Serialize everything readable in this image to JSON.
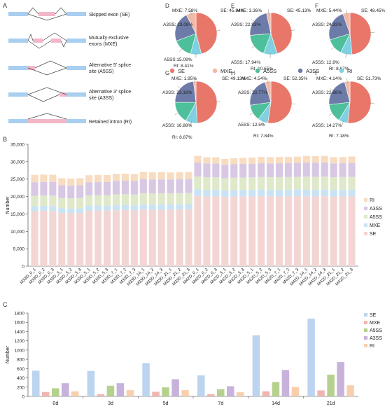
{
  "panels": {
    "A": "A",
    "B": "B",
    "C": "C",
    "D": "D",
    "E": "E",
    "F": "F",
    "G": "G",
    "H": "H",
    "I": "I"
  },
  "splice_types": [
    {
      "label": "Skipped exon (SE)",
      "lines": [
        "Skipped exon (SE)"
      ]
    },
    {
      "label": "Mutually exclusive exons (MXE)",
      "lines": [
        "Mutually exclusive",
        "exons (MXE)"
      ]
    },
    {
      "label": "Alternative 5' splice site (A5SS)",
      "lines": [
        "Alternative 5' splice",
        "site (A5SS)"
      ]
    },
    {
      "label": "Alternative 3' splice site (A3SS)",
      "lines": [
        "Alternative 3' splice",
        "site (A3SS)"
      ]
    },
    {
      "label": "Retained intron (RI)",
      "lines": [
        "Retained intron (RI)"
      ]
    }
  ],
  "colors": {
    "SE": "#e8776a",
    "MXE": "#f2b9a6",
    "A5SS": "#4dbf9b",
    "A3SS": "#6c7ba8",
    "RI": "#7fd0e0",
    "bar_SE": "#f3d6d4",
    "bar_MXE": "#c9e3f4",
    "bar_A5SS": "#dfe9c9",
    "bar_A3SS": "#d8c8e4",
    "bar_RI": "#f8dcc0",
    "c_SE": "#bcd4ef",
    "c_MXE": "#efb6b0",
    "c_A5SS": "#b6d18e",
    "c_A3SS": "#c7b2dc",
    "c_RI": "#f8cfae",
    "exon": "#a9cff0",
    "alt_exon": "#f2b8c8"
  },
  "pie_legend": [
    "SE",
    "MXE",
    "A5SS",
    "A3SS",
    "RI"
  ],
  "chart_data": [
    {
      "type": "pie",
      "panel": "D",
      "labels": [
        "SE",
        "MXE",
        "A5SS",
        "A3SS",
        "RI"
      ],
      "values": [
        45.84,
        7.58,
        15.09,
        23.08,
        8.41
      ],
      "label_texts": {
        "SE": "SE: 45.84%",
        "MXE": "MXE: 7.58%",
        "A5SS": "A5SS:15.09%",
        "A3SS": "A3SS: 23.08%",
        "RI": "RI: 8.41%"
      }
    },
    {
      "type": "pie",
      "panel": "E",
      "labels": [
        "SE",
        "MXE",
        "A5SS",
        "A3SS",
        "RI"
      ],
      "values": [
        45.13,
        3.36,
        17.94,
        22.93,
        10.65
      ],
      "label_texts": {
        "SE": "SE: 45.13%",
        "MXE": "MXE: 3.36%",
        "A5SS": "A5SS: 17.94%",
        "A3SS": "A3SS: 22.93%",
        "RI": "RI: 10.65%"
      }
    },
    {
      "type": "pie",
      "panel": "F",
      "labels": [
        "SE",
        "MXE",
        "A5SS",
        "A3SS",
        "RI"
      ],
      "values": [
        48.45,
        5.44,
        12.9,
        24.33,
        8.87
      ],
      "label_texts": {
        "SE": "SE: 48.45%",
        "MXE": "MXE: 5.44%",
        "A5SS": "A5SS: 12.9%",
        "A3SS": "A3SS: 24.33%",
        "RI": "RI: 8.87%"
      }
    },
    {
      "type": "pie",
      "panel": "G",
      "labels": [
        "SE",
        "MXE",
        "A5SS",
        "A3SS",
        "RI"
      ],
      "values": [
        49.13,
        1.95,
        16.88,
        23.16,
        8.87
      ],
      "label_texts": {
        "SE": "SE: 49.13%",
        "MXE": "MXE: 1.95%",
        "A5SS": "A5SS: 16.88%",
        "A3SS": "A3SS: 23.16%",
        "RI": "RI: 8.87%"
      }
    },
    {
      "type": "pie",
      "panel": "H",
      "labels": [
        "SE",
        "MXE",
        "A5SS",
        "A3SS",
        "RI"
      ],
      "values": [
        52.35,
        4.54,
        12.5,
        22.77,
        7.84
      ],
      "label_texts": {
        "SE": "SE: 52.35%",
        "MXE": "MXE: 4.54%",
        "A5SS": "A5SS: 12.5%",
        "A3SS": "A3SS: 22.77%",
        "RI": "RI: 7.84%"
      }
    },
    {
      "type": "pie",
      "panel": "I",
      "labels": [
        "SE",
        "MXE",
        "A5SS",
        "A3SS",
        "RI"
      ],
      "values": [
        51.73,
        4.14,
        14.27,
        22.68,
        7.18
      ],
      "label_texts": {
        "SE": "SE: 51.73%",
        "MXE": "MXE: 4.14%",
        "A5SS": "A5SS: 14.27%",
        "A3SS": "A3SS: 22.68%",
        "RI": "RI: 7.18%"
      }
    },
    {
      "type": "bar",
      "panel": "B",
      "stacked": true,
      "categories": [
        "M33D_0_1",
        "M33D_0_2",
        "M33D_0_3",
        "M33D_3_1",
        "M33D_3_2",
        "M33D_3_3",
        "M33D_5_1",
        "M33D_5_2",
        "M33D_5_3",
        "M33D_7_1",
        "M33D_7_2",
        "M33D_7_3",
        "M33D_14_1",
        "M33D_14_2",
        "M33D_14_3",
        "M33D_21_1",
        "M33D_21_2",
        "M33D_21_3",
        "M42D_0_1",
        "M42D_0_2",
        "M42D_0_3",
        "M42D_3_1",
        "M42D_3_2",
        "M42D_3_3",
        "M42D_5_1",
        "M42D_5_2",
        "M42D_5_3",
        "M42D_7_1",
        "M42D_7_2",
        "M42D_7_3",
        "M42D_14_1",
        "M42D_14_2",
        "M42D_14_3",
        "M42D_21_1",
        "M42D_21_2",
        "M42D_21_3"
      ],
      "series": [
        {
          "name": "SE",
          "values": [
            15800,
            15900,
            15850,
            15300,
            15200,
            15300,
            15900,
            16000,
            15950,
            16050,
            16100,
            16000,
            16250,
            16150,
            16200,
            16200,
            16250,
            16300,
            20150,
            20000,
            20050,
            19900,
            20000,
            20050,
            20000,
            20100,
            20050,
            20000,
            20050,
            20100,
            20050,
            20000,
            20050,
            19950,
            20000,
            20050
          ]
        },
        {
          "name": "MXE",
          "values": [
            1400,
            1400,
            1400,
            1350,
            1350,
            1350,
            1400,
            1400,
            1400,
            1450,
            1450,
            1450,
            1500,
            1500,
            1500,
            1500,
            1500,
            1500,
            1900,
            1900,
            1850,
            1850,
            1850,
            1850,
            1900,
            1900,
            1900,
            1900,
            1900,
            1900,
            1950,
            1950,
            1950,
            1950,
            1950,
            1950
          ]
        },
        {
          "name": "A5SS",
          "values": [
            3000,
            3000,
            3000,
            2900,
            2900,
            2900,
            3000,
            3000,
            3000,
            3100,
            3100,
            3100,
            3200,
            3200,
            3200,
            3200,
            3200,
            3200,
            3700,
            3600,
            3600,
            3500,
            3550,
            3550,
            3600,
            3600,
            3600,
            3650,
            3650,
            3650,
            3700,
            3700,
            3700,
            3650,
            3650,
            3650
          ]
        },
        {
          "name": "A3SS",
          "values": [
            3900,
            3900,
            3900,
            3700,
            3700,
            3700,
            3800,
            3800,
            3800,
            3900,
            3900,
            3900,
            4000,
            4000,
            4000,
            4000,
            4000,
            4000,
            4000,
            4000,
            3950,
            3850,
            3900,
            3950,
            3900,
            3950,
            3950,
            4000,
            4000,
            4000,
            4050,
            4050,
            4050,
            3950,
            3950,
            4000
          ]
        },
        {
          "name": "RI",
          "values": [
            2100,
            2100,
            2100,
            2000,
            2000,
            2000,
            2000,
            2000,
            2000,
            2000,
            2000,
            2000,
            2100,
            2100,
            2100,
            2000,
            2000,
            2000,
            1900,
            1800,
            1800,
            1700,
            1700,
            1700,
            1800,
            1800,
            1800,
            1800,
            1800,
            1800,
            1900,
            1900,
            1900,
            1800,
            1800,
            1850
          ]
        }
      ],
      "ylabel": "Number",
      "ylim": [
        0,
        35000
      ],
      "yticks": [
        "0",
        "5,000",
        "10,000",
        "15,000",
        "20,000",
        "25,000",
        "30,000",
        "35,000"
      ],
      "legend_order": [
        "RI",
        "A3SS",
        "A5SS",
        "MXE",
        "SE"
      ]
    },
    {
      "type": "bar",
      "panel": "C",
      "stacked": false,
      "categories": [
        "0d",
        "3d",
        "5d",
        "7d",
        "14d",
        "21d"
      ],
      "series": [
        {
          "name": "SE",
          "values": [
            555,
            550,
            720,
            455,
            1320,
            1680
          ]
        },
        {
          "name": "MXE",
          "values": [
            95,
            45,
            100,
            45,
            110,
            130
          ]
        },
        {
          "name": "A5SS",
          "values": [
            175,
            230,
            195,
            155,
            310,
            470
          ]
        },
        {
          "name": "A3SS",
          "values": [
            285,
            285,
            370,
            220,
            570,
            740
          ]
        },
        {
          "name": "RI",
          "values": [
            110,
            135,
            135,
            90,
            205,
            240
          ]
        }
      ],
      "ylabel": "Number",
      "ylim": [
        0,
        1800
      ],
      "yticks": [
        "0",
        "200",
        "400",
        "600",
        "800",
        "1000",
        "1200",
        "1400",
        "1600",
        "1800"
      ],
      "legend_order": [
        "SE",
        "MXE",
        "A5SS",
        "A3SS",
        "RI"
      ]
    }
  ]
}
